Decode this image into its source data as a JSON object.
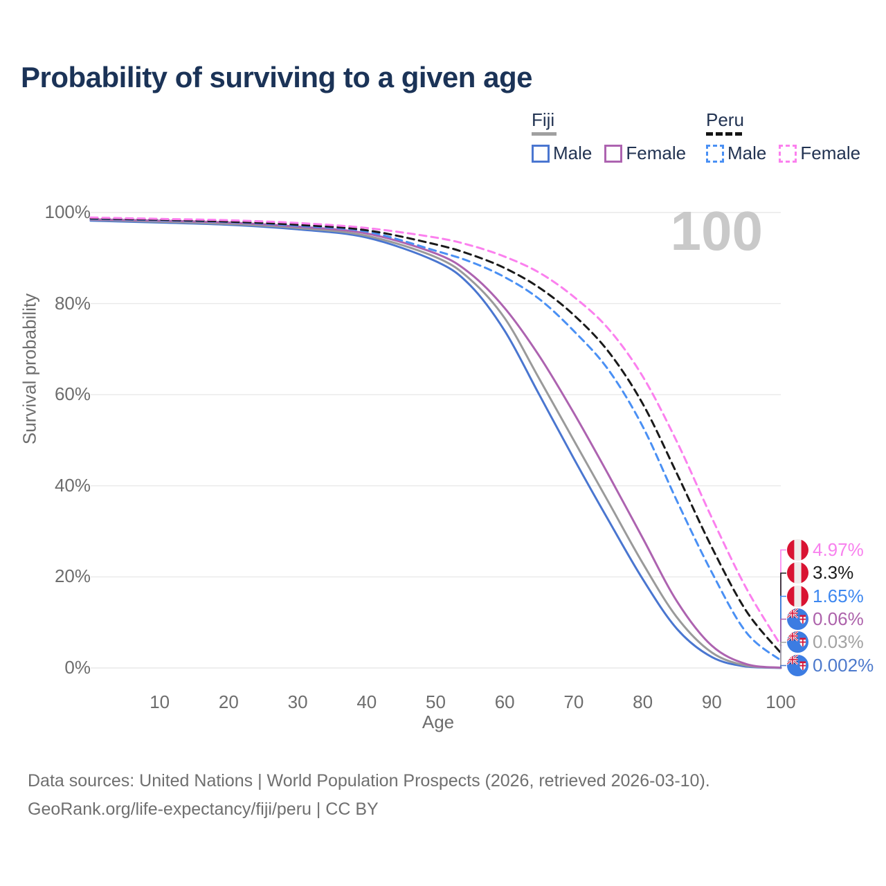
{
  "title": "Probability of surviving to a given age",
  "watermark": "100",
  "legend": {
    "fiji": {
      "label": "Fiji",
      "male": "Male",
      "female": "Female"
    },
    "peru": {
      "label": "Peru",
      "male": "Male",
      "female": "Female"
    }
  },
  "colors": {
    "title_text": "#1b3357",
    "legend_text": "#223352",
    "axis_text": "#6d6d6d",
    "gridline": "#e9e9e9",
    "watermark": "#c9c9c9",
    "footer_text": "#6f6f6f",
    "fiji_underline": "#a0a0a0",
    "peru_underline": "#141414"
  },
  "chart_data": {
    "type": "line",
    "title": "Probability of surviving to a given age",
    "xlabel": "Age",
    "ylabel": "Survival probability",
    "xlim": [
      0,
      100
    ],
    "ylim": [
      0,
      100
    ],
    "grid": "horizontal",
    "x_ticks": [
      "10",
      "20",
      "30",
      "40",
      "50",
      "60",
      "70",
      "80",
      "90",
      "100"
    ],
    "y_ticks": [
      "0%",
      "20%",
      "40%",
      "60%",
      "80%",
      "100%"
    ],
    "x": [
      0,
      10,
      20,
      30,
      40,
      50,
      55,
      60,
      65,
      70,
      75,
      80,
      85,
      90,
      95,
      100
    ],
    "series": [
      {
        "name": "Fiji Male",
        "country": "Fiji",
        "sex": "Male",
        "style": "solid",
        "color": "#4a76d0",
        "values": [
          98.2,
          97.8,
          97.3,
          96.3,
          94.5,
          89.3,
          84.0,
          74.0,
          60.0,
          46.0,
          32.5,
          19.5,
          8.5,
          2.4,
          0.3,
          0.002
        ],
        "end_label": {
          "text": "0.002%",
          "color": "#4c79cc",
          "flag": "fiji"
        }
      },
      {
        "name": "Fiji Total",
        "country": "Fiji",
        "sex": "Both",
        "style": "solid",
        "color": "#9a9a9a",
        "values": [
          98.4,
          98.0,
          97.5,
          96.6,
          94.9,
          90.2,
          85.3,
          76.8,
          63.5,
          50.0,
          36.5,
          23.0,
          11.0,
          3.4,
          0.5,
          0.03
        ],
        "end_label": {
          "text": "0.03%",
          "color": "#a2a2a2",
          "flag": "fiji"
        }
      },
      {
        "name": "Fiji Female",
        "country": "Fiji",
        "sex": "Female",
        "style": "solid",
        "color": "#ad63b0",
        "values": [
          98.5,
          98.2,
          97.8,
          96.9,
          95.4,
          91.0,
          86.6,
          79.0,
          68.5,
          56.0,
          42.5,
          28.5,
          14.5,
          4.9,
          0.85,
          0.06
        ],
        "end_label": {
          "text": "0.06%",
          "color": "#ad62ab",
          "flag": "fiji"
        }
      },
      {
        "name": "Peru Male",
        "country": "Peru",
        "sex": "Male",
        "style": "dashed",
        "color": "#4a90f4",
        "values": [
          98.6,
          98.3,
          97.9,
          97.1,
          95.8,
          91.6,
          89.2,
          85.8,
          81.0,
          74.0,
          65.5,
          53.0,
          36.5,
          21.0,
          7.8,
          1.65
        ],
        "end_label": {
          "text": "1.65%",
          "color": "#3d87f0",
          "flag": "peru"
        }
      },
      {
        "name": "Peru Total",
        "country": "Peru",
        "sex": "Both",
        "style": "dashed",
        "color": "#1a1a1a",
        "values": [
          98.7,
          98.4,
          98.0,
          97.3,
          96.1,
          93.0,
          90.8,
          87.8,
          83.5,
          77.5,
          69.5,
          58.0,
          42.5,
          26.5,
          12.5,
          3.3
        ],
        "end_label": {
          "text": "3.3%",
          "color": "#1c1c1c",
          "flag": "peru"
        }
      },
      {
        "name": "Peru Female",
        "country": "Peru",
        "sex": "Female",
        "style": "dashed",
        "color": "#fb80ee",
        "values": [
          98.9,
          98.6,
          98.3,
          97.7,
          96.6,
          94.5,
          92.8,
          90.3,
          86.8,
          81.5,
          74.5,
          64.0,
          49.5,
          33.0,
          17.5,
          4.97
        ],
        "end_label": {
          "text": "4.97%",
          "color": "#f881ee",
          "flag": "peru"
        }
      }
    ],
    "legend_position": "top-right"
  },
  "footer": {
    "line1": "Data sources: United Nations | World Population Prospects (2026, retrieved 2026-03-10).",
    "line2": "GeoRank.org/life-expectancy/fiji/peru | CC BY"
  }
}
